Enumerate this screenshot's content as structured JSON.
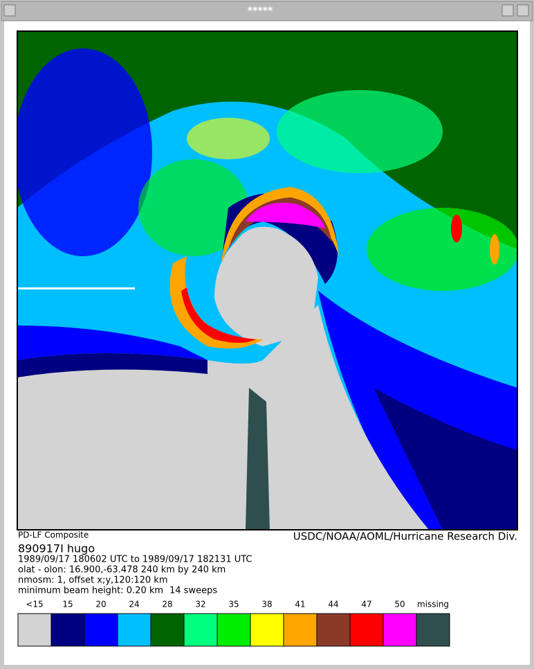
{
  "window": {
    "title": "*****"
  },
  "caption": {
    "product": "PD-LF Composite",
    "agency": "USDC/NOAA/AOML/Hurricane Research Div.",
    "storm": "890917I   hugo",
    "lines": [
      "1989/09/17 180602 UTC to 1989/09/17 182131 UTC",
      "olat - olon: 16.900,-63.478  240 km by 240 km",
      "nmosm: 1, offset x;y,120:120 km"
    ],
    "beam": "minimum beam height: 0.20 km",
    "sweeps": "14 sweeps"
  },
  "legend": [
    {
      "label": "<15",
      "color": "#d3d3d3"
    },
    {
      "label": "15",
      "color": "#000080"
    },
    {
      "label": "20",
      "color": "#0000ff"
    },
    {
      "label": "24",
      "color": "#00bfff"
    },
    {
      "label": "28",
      "color": "#006400"
    },
    {
      "label": "32",
      "color": "#00ff7f"
    },
    {
      "label": "35",
      "color": "#00ee00"
    },
    {
      "label": "38",
      "color": "#ffff00"
    },
    {
      "label": "41",
      "color": "#ffa500"
    },
    {
      "label": "44",
      "color": "#8b3a2a"
    },
    {
      "label": "47",
      "color": "#ff0000"
    },
    {
      "label": "50",
      "color": "#ff00ff"
    },
    {
      "label": "missing",
      "color": "#2f4f4f"
    }
  ]
}
